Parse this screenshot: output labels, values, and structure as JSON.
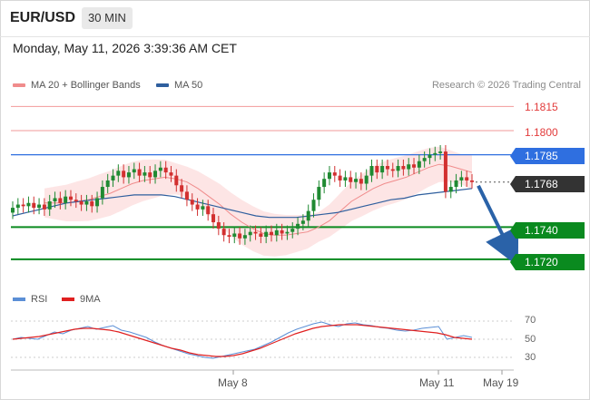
{
  "header": {
    "symbol": "EUR/USD",
    "timeframe": "30 MIN",
    "datetime": "Monday, May 11, 2026 3:39:36 AM CET"
  },
  "legend": {
    "ma20_label": "MA 20 + Bollinger Bands",
    "ma20_color": "#f08c8c",
    "ma50_label": "MA 50",
    "ma50_color": "#2f5f9e",
    "copyright": "Research © 2026 Trading Central"
  },
  "price_levels": {
    "r2": "1.1815",
    "r1": "1.1800",
    "pivot": "1.1785",
    "last": "1.1768",
    "s1": "1.1740",
    "s2": "1.1720"
  },
  "colors": {
    "up_candle": "#1f8a32",
    "down_candle": "#d23030",
    "resistance": "#e23b3b",
    "pivot": "#2f6fe0",
    "support": "#0a8a1f",
    "arrow": "#2a62a8",
    "band_fill": "#fde0e0"
  },
  "rsi_legend": {
    "rsi_label": "RSI",
    "rsi_color": "#5b8fd6",
    "ma_label": "9MA",
    "ma_color": "#e02020"
  },
  "rsi_ticks": {
    "t70": "70",
    "t50": "50",
    "t30": "30"
  },
  "x_axis": {
    "may8": "May 8",
    "may11": "May 11",
    "may19": "May 19"
  },
  "chart_data": {
    "type": "candlestick",
    "symbol": "EUR/USD",
    "timeframe": "30 MIN",
    "price_range": [
      1.1712,
      1.1822
    ],
    "support_levels": [
      1.174,
      1.172
    ],
    "resistance_levels": [
      1.1815,
      1.18
    ],
    "pivot": 1.1785,
    "last_price": 1.1768,
    "x_ticks": [
      "May 8",
      "May 11",
      "May 19"
    ],
    "close_series": [
      1.1752,
      1.1754,
      1.1753,
      1.1755,
      1.1752,
      1.1754,
      1.1751,
      1.1756,
      1.1758,
      1.1755,
      1.1759,
      1.1757,
      1.1756,
      1.1754,
      1.1756,
      1.1753,
      1.1758,
      1.1765,
      1.1769,
      1.1772,
      1.1775,
      1.1771,
      1.1774,
      1.1776,
      1.1772,
      1.1774,
      1.1771,
      1.1775,
      1.1777,
      1.1774,
      1.1772,
      1.1766,
      1.1762,
      1.1757,
      1.1754,
      1.1751,
      1.1753,
      1.1748,
      1.1743,
      1.1739,
      1.1735,
      1.1734,
      1.1736,
      1.1733,
      1.1735,
      1.1737,
      1.1736,
      1.1734,
      1.1737,
      1.1735,
      1.1738,
      1.1736,
      1.1737,
      1.1739,
      1.1742,
      1.1744,
      1.175,
      1.1757,
      1.1765,
      1.177,
      1.1774,
      1.1772,
      1.1769,
      1.1771,
      1.1768,
      1.177,
      1.1767,
      1.1772,
      1.1778,
      1.1774,
      1.1778,
      1.1776,
      1.1775,
      1.1778,
      1.1776,
      1.1779,
      1.1777,
      1.1781,
      1.1783,
      1.1785,
      1.1786,
      1.1787,
      1.1762,
      1.1765,
      1.1769,
      1.1771,
      1.1769,
      1.1768
    ],
    "ma20_series": [
      1.1755,
      1.1755,
      1.1755,
      1.1756,
      1.1757,
      1.1759,
      1.1761,
      1.1764,
      1.1767,
      1.1769,
      1.177,
      1.1771,
      1.177,
      1.1768,
      1.1764,
      1.1759,
      1.1754,
      1.1748,
      1.1743,
      1.1739,
      1.1736,
      1.1735,
      1.1735,
      1.1736,
      1.1737,
      1.174,
      1.1744,
      1.175,
      1.1756,
      1.176,
      1.1764,
      1.1767,
      1.1769,
      1.1771,
      1.1774,
      1.1777,
      1.1779,
      1.1778,
      1.1776,
      1.1774
    ],
    "ma50_series": [
      1.1747,
      1.1749,
      1.1751,
      1.1753,
      1.1755,
      1.1756,
      1.1757,
      1.1758,
      1.1759,
      1.176,
      1.176,
      1.176,
      1.1759,
      1.1757,
      1.1755,
      1.1753,
      1.1751,
      1.1749,
      1.1747,
      1.1746,
      1.1746,
      1.1746,
      1.1747,
      1.1748,
      1.1749,
      1.1751,
      1.1753,
      1.1755,
      1.1757,
      1.1758,
      1.176,
      1.1761,
      1.1762,
      1.1763,
      1.1764
    ],
    "rsi_range": [
      20,
      80
    ],
    "rsi_ticks": [
      70,
      50,
      30
    ],
    "rsi_series": [
      50,
      52,
      51,
      50,
      54,
      58,
      56,
      60,
      62,
      64,
      61,
      63,
      65,
      60,
      58,
      55,
      52,
      47,
      43,
      40,
      37,
      34,
      32,
      30,
      29,
      31,
      33,
      35,
      37,
      39,
      43,
      47,
      52,
      57,
      61,
      64,
      67,
      69,
      66,
      64,
      67,
      68,
      66,
      65,
      63,
      62,
      60,
      59,
      60,
      62,
      63,
      64,
      50,
      52,
      54,
      52
    ],
    "rsi_ma_series": [
      50,
      51,
      52,
      53,
      55,
      57,
      59,
      61,
      62,
      62,
      61,
      60,
      58,
      55,
      52,
      49,
      46,
      43,
      40,
      38,
      35,
      33,
      32,
      31,
      31,
      32,
      34,
      37,
      40,
      44,
      48,
      52,
      56,
      59,
      62,
      64,
      65,
      66,
      66,
      66,
      65,
      64,
      63,
      62,
      61,
      60,
      59,
      58,
      57,
      55,
      52,
      51,
      50
    ]
  }
}
